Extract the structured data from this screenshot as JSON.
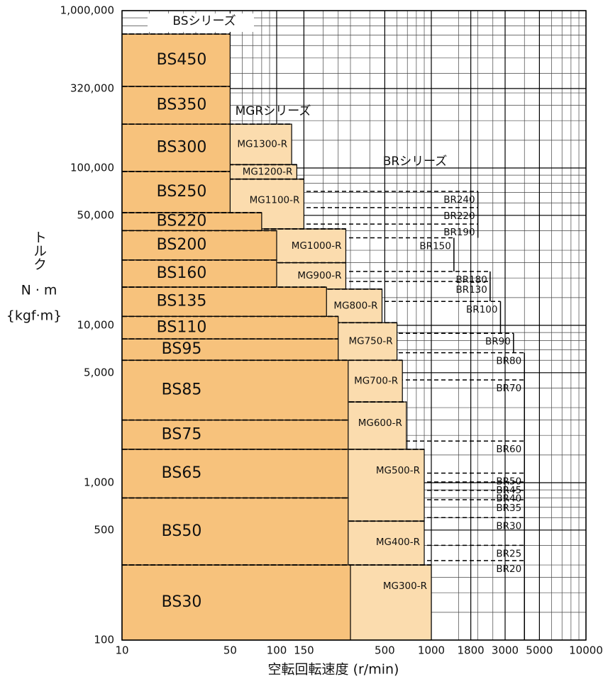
{
  "chart_data": {
    "type": "region",
    "log_x": true,
    "log_y": true,
    "grid": true,
    "xlim": [
      10,
      10000
    ],
    "ylim": [
      100,
      1000000
    ],
    "xticks": [
      10,
      50,
      100,
      150,
      500,
      1000,
      1800,
      3000,
      5000,
      10000
    ],
    "yticks": [
      100,
      500,
      {
        "value": 1000,
        "label": "1,000"
      },
      {
        "value": 5000,
        "label": "5,000"
      },
      {
        "value": 10000,
        "label": "10,000"
      },
      {
        "value": 50000,
        "label": "50,000"
      },
      {
        "value": 100000,
        "label": "100,000"
      },
      {
        "value": 320000,
        "label": "320,000"
      },
      {
        "value": 1000000,
        "label": "1,000,000"
      }
    ],
    "x_label": "空転回転速度 (r/min)",
    "y_label": [
      "トルク",
      "N · m",
      "{kgf·m}"
    ],
    "groups": [
      {
        "name": "BRシリーズ",
        "color": "none",
        "models": [
          {
            "name": "BR240",
            "torque": 71000,
            "speed": 2000
          },
          {
            "name": "BR220",
            "torque": 56000,
            "speed": 2000
          },
          {
            "name": "BR190",
            "torque": 44000,
            "speed": 2000
          },
          {
            "name": "BR150",
            "torque": 36000,
            "speed": 1400
          },
          {
            "name": "BR180",
            "torque": 22000,
            "speed": 2400
          },
          {
            "name": "BR130",
            "torque": 19000,
            "speed": 2400
          },
          {
            "name": "BR100",
            "torque": 14200,
            "speed": 2800
          },
          {
            "name": "BR90",
            "torque": 8900,
            "speed": 3400
          },
          {
            "name": "BR80",
            "torque": 6700,
            "speed": 4000
          },
          {
            "name": "BR70",
            "torque": 4500,
            "speed": 4000
          },
          {
            "name": "BR60",
            "torque": 1840,
            "speed": 4000
          },
          {
            "name": "BR50",
            "torque": 1150,
            "speed": 4000
          },
          {
            "name": "BR45",
            "torque": 1010,
            "speed": 4000
          },
          {
            "name": "BR40",
            "torque": 895,
            "speed": 4000
          },
          {
            "name": "BR35",
            "torque": 780,
            "speed": 4000
          },
          {
            "name": "BR30",
            "torque": 600,
            "speed": 4000
          },
          {
            "name": "BR25",
            "torque": 400,
            "speed": 4000
          },
          {
            "name": "BR20",
            "torque": 320,
            "speed": 4000
          }
        ]
      },
      {
        "name": "MGRシリーズ",
        "color": "#fbdcae",
        "models": [
          {
            "name": "MG1300-R",
            "torque": 190000,
            "speed": 125
          },
          {
            "name": "MG1200-R",
            "torque": 105000,
            "speed": 135
          },
          {
            "name": "MG1100-R",
            "torque": 85000,
            "speed": 150
          },
          {
            "name": "MG1000-R",
            "torque": 41000,
            "speed": 280
          },
          {
            "name": "MG900-R",
            "torque": 25000,
            "speed": 280
          },
          {
            "name": "MG800-R",
            "torque": 17000,
            "speed": 480
          },
          {
            "name": "MG750-R",
            "torque": 10400,
            "speed": 600
          },
          {
            "name": "MG700-R",
            "torque": 6000,
            "speed": 650
          },
          {
            "name": "MG600-R",
            "torque": 3260,
            "speed": 690
          },
          {
            "name": "MG500-R",
            "torque": 1630,
            "speed": 900
          },
          {
            "name": "MG400-R",
            "torque": 570,
            "speed": 900
          },
          {
            "name": "MG300-R",
            "torque": 300,
            "speed": 1000
          }
        ]
      },
      {
        "name": "BSシリーズ",
        "color": "#f7c27c",
        "models": [
          {
            "name": "BS450",
            "torque": 710000,
            "speed": 50
          },
          {
            "name": "BS350",
            "torque": 330000,
            "speed": 50
          },
          {
            "name": "BS300",
            "torque": 190000,
            "speed": 50
          },
          {
            "name": "BS250",
            "torque": 95000,
            "speed": 50
          },
          {
            "name": "BS220",
            "torque": 52000,
            "speed": 80
          },
          {
            "name": "BS200",
            "torque": 40000,
            "speed": 100
          },
          {
            "name": "BS160",
            "torque": 26000,
            "speed": 100
          },
          {
            "name": "BS135",
            "torque": 17500,
            "speed": 210
          },
          {
            "name": "BS110",
            "torque": 11400,
            "speed": 250
          },
          {
            "name": "BS95",
            "torque": 8200,
            "speed": 250
          },
          {
            "name": "BS85",
            "torque": 6000,
            "speed": 290
          },
          {
            "name": "BS75",
            "torque": 2500,
            "speed": 290
          },
          {
            "name": "BS65",
            "torque": 1630,
            "speed": 290
          },
          {
            "name": "BS50",
            "torque": 800,
            "speed": 290
          },
          {
            "name": "BS30",
            "torque": 300,
            "speed": 300
          }
        ]
      }
    ]
  }
}
